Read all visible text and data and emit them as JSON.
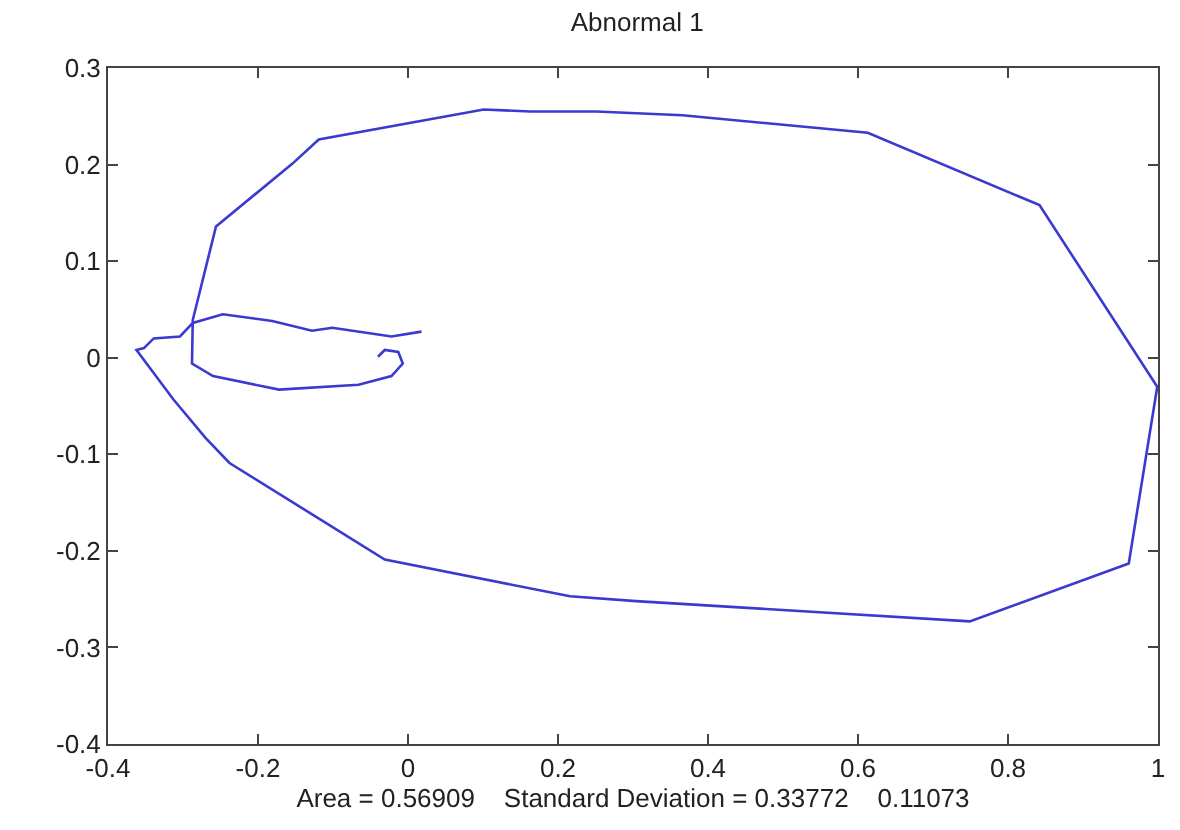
{
  "chart_data": {
    "type": "line",
    "title": "Abnormal 1",
    "xlabel": "Area = 0.56909    Standard Deviation = 0.33772    0.11073",
    "xlim": [
      -0.4,
      1
    ],
    "xticks": [
      -0.4,
      -0.2,
      0,
      0.2,
      0.4,
      0.6,
      0.8,
      1
    ],
    "ylim": [
      -0.4,
      0.3
    ],
    "yticks": [
      -0.4,
      -0.3,
      -0.2,
      -0.1,
      0,
      0.1,
      0.2,
      0.3
    ],
    "marker": "none",
    "line_style": "solid",
    "series": [
      {
        "color": "#3a3ad0",
        "x": [
          0.018,
          -0.022,
          -0.101,
          -0.128,
          -0.181,
          -0.247,
          -0.287,
          -0.304,
          -0.339,
          -0.352,
          -0.362,
          -0.313,
          -0.27,
          -0.238,
          -0.031,
          0.216,
          0.304,
          0.749,
          0.961,
          0.999,
          0.842,
          0.613,
          0.366,
          0.251,
          0.163,
          0.101,
          -0.119,
          -0.154,
          -0.256,
          -0.287,
          -0.288,
          -0.26,
          -0.172,
          -0.066,
          -0.022,
          -0.007,
          -0.013,
          -0.031,
          -0.04
        ],
        "values": [
          0.027,
          0.022,
          0.031,
          0.028,
          0.038,
          0.045,
          0.036,
          0.022,
          0.02,
          0.01,
          0.008,
          -0.043,
          -0.083,
          -0.109,
          -0.209,
          -0.247,
          -0.252,
          -0.273,
          -0.213,
          -0.03,
          0.158,
          0.233,
          0.251,
          0.255,
          0.255,
          0.257,
          0.226,
          0.201,
          0.136,
          0.039,
          -0.006,
          -0.019,
          -0.033,
          -0.028,
          -0.019,
          -0.006,
          0.006,
          0.008,
          0.001
        ]
      }
    ]
  }
}
